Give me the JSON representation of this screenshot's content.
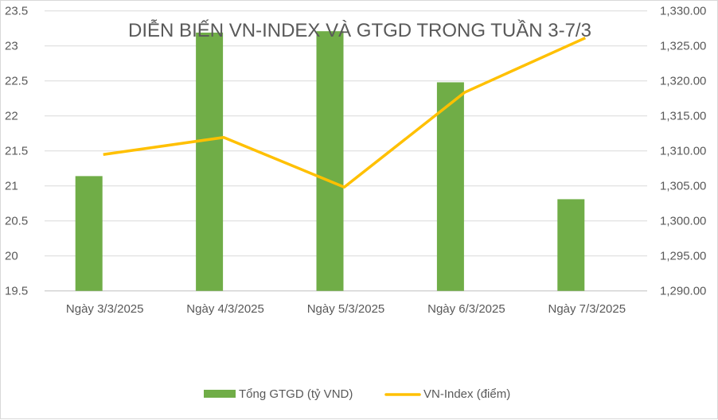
{
  "chart_data": {
    "type": "bar+line",
    "title": "DIỄN BIẾN VN-INDEX VÀ GTGD TRONG TUẦN 3-7/3",
    "categories": [
      "Ngày 3/3/2025",
      "Ngày 4/3/2025",
      "Ngày 5/3/2025",
      "Ngày 6/3/2025",
      "Ngày 7/3/2025"
    ],
    "series": [
      {
        "name": "Tổng GTGD (tỷ VND)",
        "type": "bar",
        "axis": "left",
        "color": "#70ad47",
        "values": [
          21.14,
          23.19,
          23.21,
          22.48,
          20.81
        ]
      },
      {
        "name": "VN-Index (điểm)",
        "type": "line",
        "axis": "right",
        "color": "#ffc000",
        "values": [
          1309.48,
          1311.93,
          1304.82,
          1318.37,
          1326.14
        ]
      }
    ],
    "left_axis": {
      "ylim": [
        19.5,
        23.5
      ],
      "ticks": [
        "19.5",
        "20",
        "20.5",
        "21",
        "21.5",
        "22",
        "22.5",
        "23",
        "23.5"
      ]
    },
    "right_axis": {
      "ylim": [
        1290,
        1330
      ],
      "ticks": [
        "1,290.00",
        "1,295.00",
        "1,300.00",
        "1,305.00",
        "1,310.00",
        "1,315.00",
        "1,320.00",
        "1,325.00",
        "1,330.00"
      ]
    },
    "grid": true,
    "legend_position": "bottom"
  }
}
